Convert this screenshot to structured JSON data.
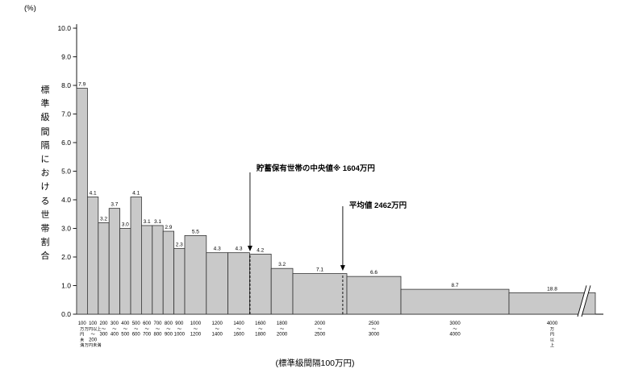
{
  "chart_data": {
    "type": "bar",
    "y_axis": {
      "unit_label": "(%)",
      "title": "標準級間隔における世帯割合",
      "min": 0,
      "max": 10,
      "step": 1,
      "tick_decimals": 1
    },
    "x_axis": {
      "caption": "(標準級間隔100万円)"
    },
    "bars": [
      {
        "from": 0,
        "to": 100,
        "percent": 7.9,
        "bar_height": 7.9,
        "tick_lines": [
          "100",
          "万",
          "円",
          "未",
          "満"
        ]
      },
      {
        "from": 100,
        "to": 200,
        "percent": 4.1,
        "bar_height": 4.1,
        "tick_lines": [
          "100",
          "万円以上",
          "〜",
          "200",
          "万円未満"
        ]
      },
      {
        "from": 200,
        "to": 300,
        "percent": 3.2,
        "bar_height": 3.2,
        "tick_lines": [
          "200",
          "〜",
          "300"
        ]
      },
      {
        "from": 300,
        "to": 400,
        "percent": 3.7,
        "bar_height": 3.7,
        "tick_lines": [
          "300",
          "〜",
          "400"
        ]
      },
      {
        "from": 400,
        "to": 500,
        "percent": 3.0,
        "bar_height": 3.0,
        "tick_lines": [
          "400",
          "〜",
          "500"
        ]
      },
      {
        "from": 500,
        "to": 600,
        "percent": 4.1,
        "bar_height": 4.1,
        "tick_lines": [
          "500",
          "〜",
          "600"
        ]
      },
      {
        "from": 600,
        "to": 700,
        "percent": 3.1,
        "bar_height": 3.1,
        "tick_lines": [
          "600",
          "〜",
          "700"
        ]
      },
      {
        "from": 700,
        "to": 800,
        "percent": 3.1,
        "bar_height": 3.1,
        "tick_lines": [
          "700",
          "〜",
          "800"
        ]
      },
      {
        "from": 800,
        "to": 900,
        "percent": 2.9,
        "bar_height": 2.9,
        "tick_lines": [
          "800",
          "〜",
          "900"
        ]
      },
      {
        "from": 900,
        "to": 1000,
        "percent": 2.3,
        "bar_height": 2.3,
        "tick_lines": [
          "900",
          "〜",
          "1000"
        ]
      },
      {
        "from": 1000,
        "to": 1200,
        "percent": 5.5,
        "bar_height": 2.75,
        "tick_lines": [
          "1000",
          "〜",
          "1200"
        ]
      },
      {
        "from": 1200,
        "to": 1400,
        "percent": 4.3,
        "bar_height": 2.15,
        "tick_lines": [
          "1200",
          "〜",
          "1400"
        ]
      },
      {
        "from": 1400,
        "to": 1600,
        "percent": 4.3,
        "bar_height": 2.15,
        "tick_lines": [
          "1400",
          "〜",
          "1600"
        ]
      },
      {
        "from": 1600,
        "to": 1800,
        "percent": 4.2,
        "bar_height": 2.1,
        "tick_lines": [
          "1600",
          "〜",
          "1800"
        ]
      },
      {
        "from": 1800,
        "to": 2000,
        "percent": 3.2,
        "bar_height": 1.6,
        "tick_lines": [
          "1800",
          "〜",
          "2000"
        ]
      },
      {
        "from": 2000,
        "to": 2500,
        "percent": 7.1,
        "bar_height": 1.42,
        "tick_lines": [
          "2000",
          "〜",
          "2500"
        ]
      },
      {
        "from": 2500,
        "to": 3000,
        "percent": 6.6,
        "bar_height": 1.32,
        "tick_lines": [
          "2500",
          "〜",
          "3000"
        ]
      },
      {
        "from": 3000,
        "to": 4000,
        "percent": 8.7,
        "bar_height": 0.87,
        "tick_lines": [
          "3000",
          "〜",
          "4000"
        ]
      },
      {
        "from": 4000,
        "to": null,
        "percent": 18.8,
        "bar_height": 0.75,
        "truncated": true,
        "tick_lines": [
          "4000",
          "万",
          "円",
          "以",
          "上"
        ]
      }
    ],
    "annotations": [
      {
        "id": "median",
        "label": "貯蓄保有世帯の中央値※ 1604万円",
        "value_man_yen": 1604
      },
      {
        "id": "mean",
        "label": "平均値 2462万円",
        "value_man_yen": 2462
      }
    ],
    "style": {
      "bar_fill": "#c9c9c9",
      "bar_stroke": "#333333",
      "axis_color": "#000000"
    }
  }
}
